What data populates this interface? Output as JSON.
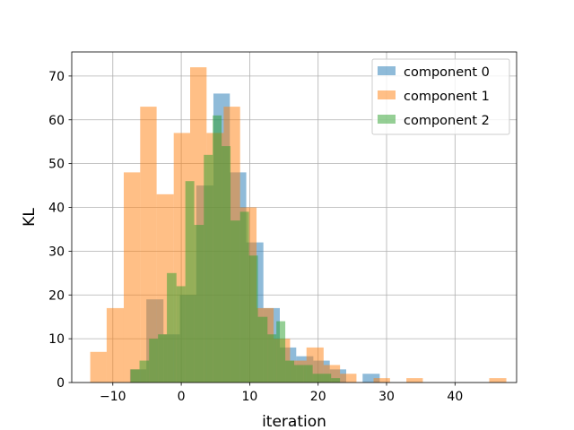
{
  "chart_data": {
    "type": "histogram",
    "title": "",
    "xlabel": "iteration",
    "ylabel": "KL",
    "xlim": [
      -16,
      49
    ],
    "ylim": [
      0,
      75.5
    ],
    "xticks": [
      -10,
      0,
      10,
      20,
      30,
      40
    ],
    "yticks": [
      0,
      10,
      20,
      30,
      40,
      50,
      60,
      70
    ],
    "grid": true,
    "legend": {
      "placement": "top-right"
    },
    "alpha": 0.5,
    "series": [
      {
        "name": "component 0",
        "color": "#1f77b4",
        "bins": [
          [
            -7.5,
            -5.1,
            3
          ],
          [
            -5.1,
            -2.6,
            19
          ],
          [
            -2.6,
            -0.2,
            11
          ],
          [
            -0.2,
            2.2,
            20
          ],
          [
            2.2,
            4.7,
            45
          ],
          [
            4.7,
            7.1,
            66
          ],
          [
            7.1,
            9.5,
            48
          ],
          [
            9.5,
            12.0,
            32
          ],
          [
            12.0,
            14.4,
            17
          ],
          [
            14.4,
            16.8,
            8
          ],
          [
            16.8,
            19.3,
            6
          ],
          [
            19.3,
            21.7,
            5
          ],
          [
            21.7,
            24.1,
            3
          ],
          [
            24.1,
            26.5,
            0
          ],
          [
            26.5,
            29.0,
            2
          ]
        ]
      },
      {
        "name": "component 1",
        "color": "#ff7f0e",
        "bins": [
          [
            -13.3,
            -10.9,
            7
          ],
          [
            -10.9,
            -8.4,
            17
          ],
          [
            -8.4,
            -6.0,
            48
          ],
          [
            -6.0,
            -3.6,
            63
          ],
          [
            -3.6,
            -1.1,
            43
          ],
          [
            -1.1,
            1.3,
            57
          ],
          [
            1.3,
            3.7,
            72
          ],
          [
            3.7,
            6.2,
            57
          ],
          [
            6.2,
            8.6,
            63
          ],
          [
            8.6,
            11.0,
            40
          ],
          [
            11.0,
            13.5,
            17
          ],
          [
            13.5,
            15.9,
            10
          ],
          [
            15.9,
            18.3,
            5
          ],
          [
            18.3,
            20.8,
            8
          ],
          [
            20.8,
            23.2,
            4
          ],
          [
            23.2,
            25.6,
            2
          ],
          [
            25.6,
            28.1,
            0
          ],
          [
            28.1,
            30.5,
            1
          ],
          [
            30.5,
            32.9,
            0
          ],
          [
            32.9,
            35.3,
            1
          ],
          [
            35.3,
            37.8,
            0
          ],
          [
            37.8,
            40.2,
            0
          ],
          [
            40.2,
            42.6,
            0
          ],
          [
            42.6,
            45.0,
            0
          ],
          [
            45.0,
            47.5,
            1
          ]
        ]
      },
      {
        "name": "component 2",
        "color": "#2ca02c",
        "bins": [
          [
            -7.4,
            -6.1,
            3
          ],
          [
            -6.1,
            -4.7,
            5
          ],
          [
            -4.7,
            -3.4,
            10
          ],
          [
            -3.4,
            -2.1,
            11
          ],
          [
            -2.1,
            -0.7,
            25
          ],
          [
            -0.7,
            0.6,
            22
          ],
          [
            0.6,
            1.9,
            46
          ],
          [
            1.9,
            3.3,
            36
          ],
          [
            3.3,
            4.6,
            52
          ],
          [
            4.6,
            5.9,
            61
          ],
          [
            5.9,
            7.2,
            54
          ],
          [
            7.2,
            8.6,
            37
          ],
          [
            8.6,
            9.9,
            39
          ],
          [
            9.9,
            11.2,
            29
          ],
          [
            11.2,
            12.6,
            15
          ],
          [
            12.6,
            13.9,
            11
          ],
          [
            13.9,
            15.2,
            14
          ],
          [
            15.2,
            16.5,
            5
          ],
          [
            16.5,
            17.9,
            4
          ],
          [
            17.9,
            19.2,
            4
          ],
          [
            19.2,
            20.5,
            2
          ],
          [
            20.5,
            21.9,
            2
          ],
          [
            21.9,
            23.2,
            1
          ]
        ]
      }
    ]
  }
}
